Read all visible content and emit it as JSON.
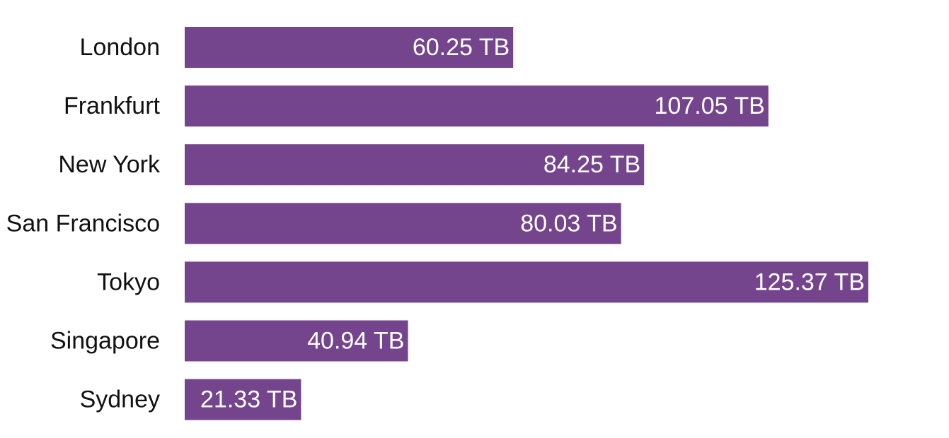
{
  "chart_data": {
    "type": "bar",
    "orientation": "horizontal",
    "categories": [
      "London",
      "Frankfurt",
      "New York",
      "San Francisco",
      "Tokyo",
      "Singapore",
      "Sydney"
    ],
    "values": [
      60.25,
      107.05,
      84.25,
      80.03,
      125.37,
      40.94,
      21.33
    ],
    "value_labels": [
      "60.25 TB",
      "107.05 TB",
      "84.25 TB",
      "80.03 TB",
      "125.37 TB",
      "40.94 TB",
      "21.33 TB"
    ],
    "unit": "TB",
    "xlim": [
      0,
      125.37
    ],
    "bar_color": "#74448c",
    "label_color": "#ffffff",
    "grid": false,
    "legend": "none"
  }
}
